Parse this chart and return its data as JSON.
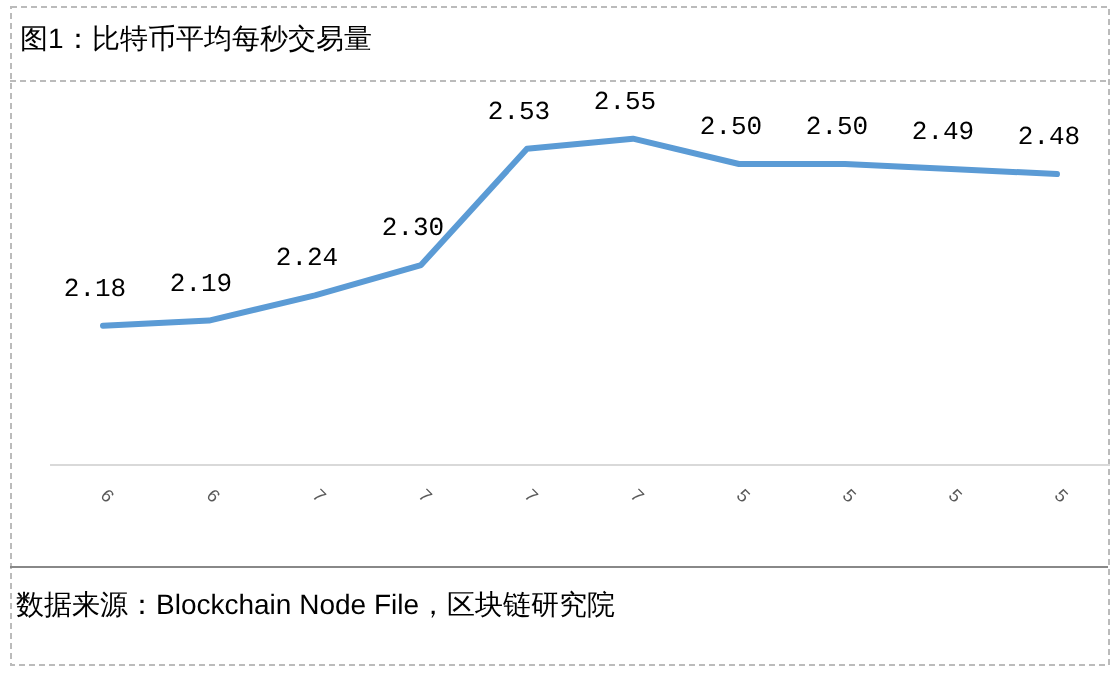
{
  "chart_data": {
    "type": "line",
    "title": "图1：比特币平均每秒交易量",
    "categories": [
      "6",
      "6",
      "7",
      "7",
      "7",
      "7",
      "5",
      "5",
      "5",
      "5"
    ],
    "series": [
      {
        "color": "#5b9bd5",
        "values": [
          2.18,
          2.19,
          2.24,
          2.3,
          2.53,
          2.55,
          2.5,
          2.5,
          2.49,
          2.48
        ],
        "value_labels": [
          "2.18",
          "2.19",
          "2.24",
          "2.30",
          "2.53",
          "2.55",
          "2.50",
          "2.50",
          "2.49",
          "2.48"
        ]
      }
    ],
    "marker": "none",
    "line_style": "solid",
    "annotations": [
      "数据来源：Blockchain Node File，区块链研究院"
    ]
  }
}
